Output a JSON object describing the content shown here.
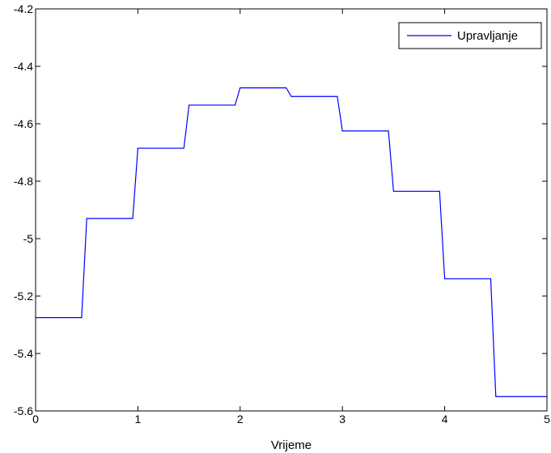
{
  "chart_data": {
    "type": "line",
    "title": "",
    "xlabel": "Vrijeme",
    "ylabel": "",
    "xlim": [
      0,
      5
    ],
    "ylim": [
      -5.6,
      -4.2
    ],
    "x_ticks": [
      0,
      1,
      2,
      3,
      4,
      5
    ],
    "x_tick_labels": [
      "0",
      "1",
      "2",
      "3",
      "4",
      "5"
    ],
    "y_ticks": [
      -4.2,
      -4.4,
      -4.6,
      -4.8,
      -5,
      -5.2,
      -5.4,
      -5.6
    ],
    "y_tick_labels": [
      "-4.2",
      "-4.4",
      "-4.6",
      "-4.8",
      "-5",
      "-5.2",
      "-5.4",
      "-5.6"
    ],
    "grid": false,
    "legend_position": "top-right",
    "series": [
      {
        "name": "Upravljanje",
        "color": "#0000ff",
        "x": [
          0,
          0.45,
          0.5,
          0.95,
          1.0,
          1.45,
          1.5,
          1.95,
          2.0,
          2.45,
          2.5,
          2.95,
          3.0,
          3.45,
          3.5,
          3.95,
          4.0,
          4.45,
          4.5,
          5.0
        ],
        "y": [
          -5.275,
          -5.275,
          -4.93,
          -4.93,
          -4.685,
          -4.685,
          -4.535,
          -4.535,
          -4.475,
          -4.475,
          -4.505,
          -4.505,
          -4.625,
          -4.625,
          -4.835,
          -4.835,
          -5.14,
          -5.14,
          -5.55,
          -5.55
        ]
      }
    ]
  }
}
